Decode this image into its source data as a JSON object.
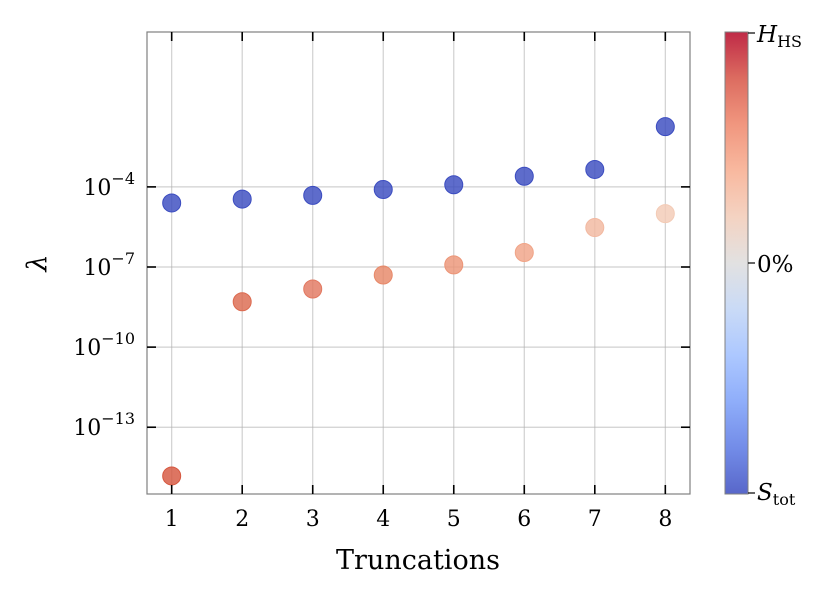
{
  "chart_data": {
    "type": "scatter",
    "xlabel": "Truncations",
    "ylabel": "λ",
    "yscale": "log",
    "ylim_log10": [
      -15.5,
      1.8
    ],
    "xlim": [
      0.65,
      8.35
    ],
    "grid": true,
    "x": [
      1,
      2,
      3,
      4,
      5,
      6,
      7,
      8
    ],
    "x_tick_labels": [
      "1",
      "2",
      "3",
      "4",
      "5",
      "6",
      "7",
      "8"
    ],
    "y_ticks": [
      {
        "log10": -4,
        "base": "10",
        "exponent": "−4"
      },
      {
        "log10": -7,
        "base": "10",
        "exponent": "−7"
      },
      {
        "log10": -10,
        "base": "10",
        "exponent": "−10"
      },
      {
        "log10": -13,
        "base": "10",
        "exponent": "−13"
      }
    ],
    "series": [
      {
        "y": [
          2.5e-05,
          3.5e-05,
          4.8e-05,
          8e-05,
          0.00012,
          0.00025,
          0.00045,
          0.018
        ],
        "colors": [
          "#3b4cc0",
          "#3b4cc0",
          "#3b4cc0",
          "#3b4cc0",
          "#3b4cc0",
          "#3b4cc0",
          "#3b4cc0",
          "#3b4cc0"
        ]
      },
      {
        "y": [
          1.5e-15,
          5e-09,
          1.5e-08,
          5e-08,
          1.2e-07,
          3.5e-07,
          3e-06,
          1e-05
        ],
        "colors": [
          "#d6573f",
          "#dc6a4f",
          "#e27860",
          "#e78868",
          "#ec9577",
          "#f0a487",
          "#f2b8a0",
          "#f3cbb6"
        ]
      }
    ],
    "colorbar": {
      "top_label_main": "H",
      "top_label_sub": "HS",
      "mid_label": "0%",
      "bottom_label_main": "S",
      "bottom_label_sub": "tot",
      "colors": [
        "#3b4cc0",
        "#5a78e4",
        "#7b9ff9",
        "#9ebeff",
        "#c0d4f5",
        "#dddcdc",
        "#f2cbb7",
        "#f7ac8e",
        "#ee8468",
        "#d65244",
        "#b40426"
      ]
    }
  }
}
